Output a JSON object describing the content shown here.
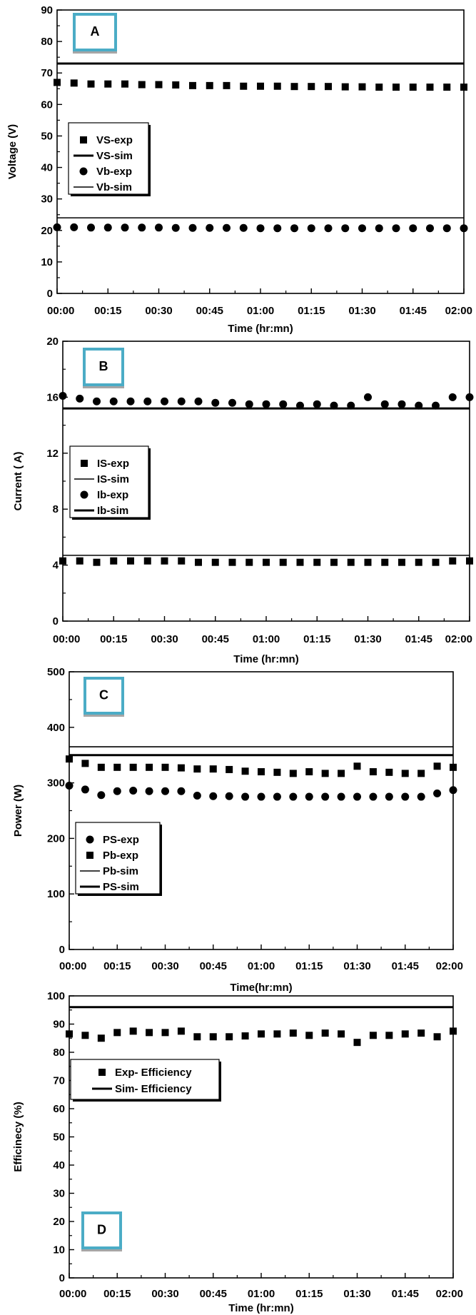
{
  "chart_data": [
    {
      "id": "A",
      "type": "scatter",
      "panel_label": "A",
      "xlabel": "Time (hr:mn)",
      "ylabel": "Voltage (V)",
      "xlim": [
        0,
        120
      ],
      "ylim": [
        0,
        90
      ],
      "xticks": [
        0,
        15,
        30,
        45,
        60,
        75,
        90,
        105,
        120
      ],
      "xtick_labels": [
        "00:00",
        "00:15",
        "00:30",
        "00:45",
        "01:00",
        "01:15",
        "01:30",
        "01:45",
        "02:00"
      ],
      "yticks": [
        0,
        10,
        20,
        30,
        40,
        50,
        60,
        70,
        80,
        90
      ],
      "ytick_labels": [
        "0",
        "10",
        "20",
        "30",
        "40",
        "50",
        "60",
        "70",
        "80",
        "90"
      ],
      "legend_position": "middle-left",
      "series": [
        {
          "name": "VS-exp",
          "kind": "points",
          "marker": "square",
          "x": [
            0,
            5,
            10,
            15,
            20,
            25,
            30,
            35,
            40,
            45,
            50,
            55,
            60,
            65,
            70,
            75,
            80,
            85,
            90,
            95,
            100,
            105,
            110,
            115,
            120
          ],
          "values": [
            67,
            66.8,
            66.5,
            66.5,
            66.5,
            66.3,
            66.3,
            66.2,
            66,
            66,
            66,
            65.8,
            65.8,
            65.8,
            65.7,
            65.7,
            65.7,
            65.6,
            65.6,
            65.5,
            65.5,
            65.5,
            65.5,
            65.5,
            65.5
          ]
        },
        {
          "name": "VS-sim",
          "kind": "line",
          "stroke": "thick",
          "x": [
            0,
            120
          ],
          "values": [
            73,
            73
          ]
        },
        {
          "name": "Vb-exp",
          "kind": "points",
          "marker": "circle",
          "x": [
            0,
            5,
            10,
            15,
            20,
            25,
            30,
            35,
            40,
            45,
            50,
            55,
            60,
            65,
            70,
            75,
            80,
            85,
            90,
            95,
            100,
            105,
            110,
            115,
            120
          ],
          "values": [
            21,
            21,
            20.9,
            20.9,
            20.9,
            20.9,
            20.9,
            20.8,
            20.8,
            20.8,
            20.8,
            20.8,
            20.7,
            20.7,
            20.7,
            20.7,
            20.7,
            20.7,
            20.7,
            20.7,
            20.7,
            20.7,
            20.7,
            20.7,
            20.7
          ]
        },
        {
          "name": "Vb-sim",
          "kind": "line",
          "stroke": "thin",
          "x": [
            0,
            120
          ],
          "values": [
            24,
            24
          ]
        }
      ]
    },
    {
      "id": "B",
      "type": "scatter",
      "panel_label": "B",
      "xlabel": "Time (hr:mn)",
      "ylabel": "Current ( A)",
      "xlim": [
        0,
        120
      ],
      "ylim": [
        0,
        20
      ],
      "xticks": [
        0,
        15,
        30,
        45,
        60,
        75,
        90,
        105,
        120
      ],
      "xtick_labels": [
        "00:00",
        "00:15",
        "00:30",
        "00:45",
        "01:00",
        "01:15",
        "01:30",
        "01:45",
        "02:00"
      ],
      "yticks": [
        0,
        4,
        8,
        12,
        16,
        20
      ],
      "ytick_labels": [
        "0",
        "4",
        "8",
        "12",
        "16",
        "20"
      ],
      "legend_position": "middle-left",
      "series": [
        {
          "name": "IS-exp",
          "kind": "points",
          "marker": "square",
          "x": [
            0,
            5,
            10,
            15,
            20,
            25,
            30,
            35,
            40,
            45,
            50,
            55,
            60,
            65,
            70,
            75,
            80,
            85,
            90,
            95,
            100,
            105,
            110,
            115,
            120
          ],
          "values": [
            4.3,
            4.3,
            4.2,
            4.3,
            4.3,
            4.3,
            4.3,
            4.3,
            4.2,
            4.2,
            4.2,
            4.2,
            4.2,
            4.2,
            4.2,
            4.2,
            4.2,
            4.2,
            4.2,
            4.2,
            4.2,
            4.2,
            4.2,
            4.3,
            4.3
          ]
        },
        {
          "name": "IS-sim",
          "kind": "line",
          "stroke": "thin",
          "x": [
            0,
            120
          ],
          "values": [
            4.7,
            4.7
          ]
        },
        {
          "name": "Ib-exp",
          "kind": "points",
          "marker": "circle",
          "x": [
            0,
            5,
            10,
            15,
            20,
            25,
            30,
            35,
            40,
            45,
            50,
            55,
            60,
            65,
            70,
            75,
            80,
            85,
            90,
            95,
            100,
            105,
            110,
            115,
            120
          ],
          "values": [
            16.1,
            15.9,
            15.7,
            15.7,
            15.7,
            15.7,
            15.7,
            15.7,
            15.7,
            15.6,
            15.6,
            15.5,
            15.5,
            15.5,
            15.4,
            15.5,
            15.4,
            15.4,
            16,
            15.5,
            15.5,
            15.4,
            15.4,
            16,
            16
          ]
        },
        {
          "name": "Ib-sim",
          "kind": "line",
          "stroke": "thick",
          "x": [
            0,
            120
          ],
          "values": [
            15.2,
            15.2
          ]
        }
      ]
    },
    {
      "id": "C",
      "type": "scatter",
      "panel_label": "C",
      "xlabel": "Time(hr:mn)",
      "ylabel": "Power (W)",
      "xlim": [
        0,
        120
      ],
      "ylim": [
        0,
        500
      ],
      "xticks": [
        0,
        15,
        30,
        45,
        60,
        75,
        90,
        105,
        120
      ],
      "xtick_labels": [
        "00:00",
        "00:15",
        "00:30",
        "00:45",
        "01:00",
        "01:15",
        "01:30",
        "01:45",
        "02:00"
      ],
      "yticks": [
        0,
        100,
        200,
        300,
        400,
        500
      ],
      "ytick_labels": [
        "0",
        "100",
        "200",
        "300",
        "400",
        "500"
      ],
      "legend_position": "lower-left",
      "series": [
        {
          "name": "PS-exp",
          "kind": "points",
          "marker": "circle",
          "x": [
            0,
            5,
            10,
            15,
            20,
            25,
            30,
            35,
            40,
            45,
            50,
            55,
            60,
            65,
            70,
            75,
            80,
            85,
            90,
            95,
            100,
            105,
            110,
            115,
            120
          ],
          "values": [
            295,
            288,
            278,
            285,
            286,
            285,
            285,
            285,
            277,
            276,
            276,
            275,
            275,
            275,
            275,
            275,
            275,
            275,
            275,
            275,
            275,
            275,
            275,
            281,
            287
          ]
        },
        {
          "name": "Pb-exp",
          "kind": "points",
          "marker": "square",
          "x": [
            0,
            5,
            10,
            15,
            20,
            25,
            30,
            35,
            40,
            45,
            50,
            55,
            60,
            65,
            70,
            75,
            80,
            85,
            90,
            95,
            100,
            105,
            110,
            115,
            120
          ],
          "values": [
            343,
            335,
            328,
            328,
            328,
            328,
            328,
            327,
            325,
            325,
            324,
            321,
            320,
            319,
            317,
            320,
            317,
            317,
            330,
            320,
            319,
            317,
            317,
            330,
            328
          ]
        },
        {
          "name": "Pb-sim",
          "kind": "line",
          "stroke": "thin",
          "x": [
            0,
            120
          ],
          "values": [
            365,
            365
          ]
        },
        {
          "name": "PS-sim",
          "kind": "line",
          "stroke": "thick",
          "x": [
            0,
            120
          ],
          "values": [
            350,
            350
          ]
        }
      ]
    },
    {
      "id": "D",
      "type": "scatter",
      "panel_label": "D",
      "xlabel": "Time (hr:mn)",
      "ylabel": "Efficinecy (%)",
      "xlim": [
        0,
        120
      ],
      "ylim": [
        0,
        100
      ],
      "xticks": [
        0,
        15,
        30,
        45,
        60,
        75,
        90,
        105,
        120
      ],
      "xtick_labels": [
        "00:00",
        "00:15",
        "00:30",
        "00:45",
        "01:00",
        "01:15",
        "01:30",
        "01:45",
        "02:00"
      ],
      "yticks": [
        0,
        10,
        20,
        30,
        40,
        50,
        60,
        70,
        80,
        90,
        100
      ],
      "ytick_labels": [
        "0",
        "10",
        "20",
        "30",
        "40",
        "50",
        "60",
        "70",
        "80",
        "90",
        "100"
      ],
      "legend_position": "upper-left",
      "series": [
        {
          "name": "Exp- Efficiency",
          "kind": "points",
          "marker": "square",
          "x": [
            0,
            5,
            10,
            15,
            20,
            25,
            30,
            35,
            40,
            45,
            50,
            55,
            60,
            65,
            70,
            75,
            80,
            85,
            90,
            95,
            100,
            105,
            110,
            115,
            120
          ],
          "values": [
            86.5,
            86,
            85,
            87,
            87.5,
            87,
            87,
            87.5,
            85.5,
            85.5,
            85.5,
            85.8,
            86.5,
            86.5,
            86.8,
            86,
            86.8,
            86.5,
            83.5,
            86,
            86,
            86.5,
            86.8,
            85.5,
            87.5
          ]
        },
        {
          "name": "Sim- Efficiency",
          "kind": "line",
          "stroke": "thick",
          "x": [
            0,
            120
          ],
          "values": [
            96,
            96
          ]
        }
      ]
    }
  ],
  "colors": {
    "marker": "#000000",
    "panel_label_frame": "#4bacc6",
    "panel_label_frame_shadow": "#a6a6a6"
  }
}
